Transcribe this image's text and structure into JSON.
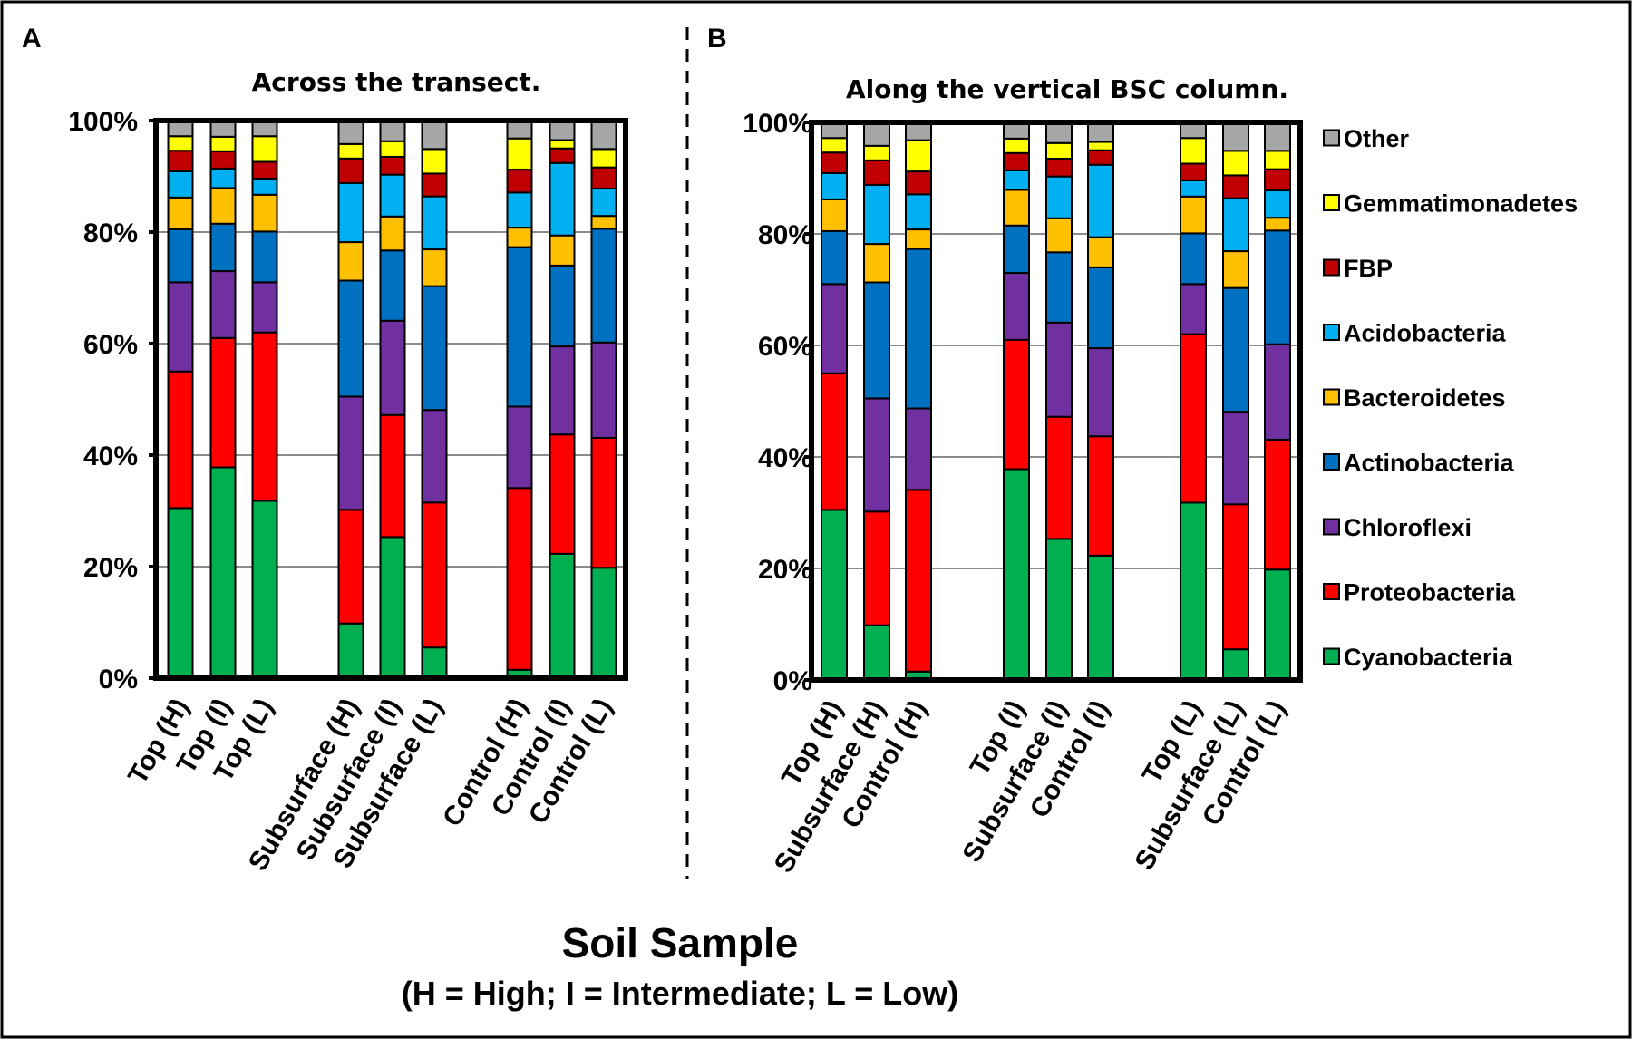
{
  "figure": {
    "xlabel": "Soil Sample",
    "xlabel_sub": "(H = High; I = Intermediate; L = Low)"
  },
  "legend": {
    "items": [
      "Other",
      "Gemmatimonadetes",
      "FBP",
      "Acidobacteria",
      "Bacteroidetes",
      "Actinobacteria",
      "Chloroflexi",
      "Proteobacteria",
      "Cyanobacteria"
    ]
  },
  "chart_data": [
    {
      "type": "bar",
      "stacked": true,
      "panel": "A",
      "title": "Across the transect.",
      "ylabel": "",
      "ylim": [
        0,
        100
      ],
      "yticks": [
        "0%",
        "20%",
        "40%",
        "60%",
        "80%",
        "100%"
      ],
      "grid": true,
      "groups": [
        3,
        3,
        3
      ],
      "categories": [
        "Top (H)",
        "Top (I)",
        "Top (L)",
        "Subsurface (H)",
        "Subsurface (I)",
        "Subsurface (L)",
        "Control (H)",
        "Control (I)",
        "Control (L)"
      ],
      "series": [
        {
          "name": "Cyanobacteria",
          "color": "#00b050",
          "values": [
            30.5,
            37.8,
            31.8,
            9.8,
            25.3,
            5.5,
            1.5,
            22.3,
            19.8
          ]
        },
        {
          "name": "Proteobacteria",
          "color": "#ff0000",
          "values": [
            24.5,
            23.2,
            30.2,
            20.4,
            21.9,
            26.0,
            32.6,
            21.4,
            23.3
          ]
        },
        {
          "name": "Chloroflexi",
          "color": "#7030a0",
          "values": [
            16.0,
            12.0,
            9.0,
            20.3,
            16.9,
            16.6,
            14.6,
            15.8,
            17.1
          ]
        },
        {
          "name": "Actinobacteria",
          "color": "#0070c0",
          "values": [
            9.5,
            8.5,
            9.1,
            20.8,
            12.6,
            22.2,
            28.6,
            14.5,
            20.4
          ]
        },
        {
          "name": "Bacteroidetes",
          "color": "#ffc000",
          "values": [
            5.7,
            6.4,
            6.6,
            6.9,
            6.1,
            6.6,
            3.5,
            5.4,
            2.3
          ]
        },
        {
          "name": "Acidobacteria",
          "color": "#00b0f0",
          "values": [
            4.7,
            3.5,
            2.9,
            10.6,
            7.5,
            9.5,
            6.3,
            13.0,
            4.9
          ]
        },
        {
          "name": "FBP",
          "color": "#c00000",
          "values": [
            3.7,
            3.1,
            3.0,
            4.4,
            3.2,
            4.1,
            4.1,
            2.6,
            3.8
          ]
        },
        {
          "name": "Gemmatimonadetes",
          "color": "#ffff00",
          "values": [
            2.6,
            2.6,
            4.6,
            2.6,
            2.8,
            4.4,
            5.6,
            1.5,
            3.3
          ]
        },
        {
          "name": "Other",
          "color": "#a6a6a6",
          "values": [
            2.8,
            2.9,
            2.8,
            4.2,
            3.7,
            5.1,
            3.2,
            3.5,
            5.1
          ]
        }
      ]
    },
    {
      "type": "bar",
      "stacked": true,
      "panel": "B",
      "title": "Along the vertical BSC column.",
      "ylabel": "",
      "ylim": [
        0,
        100
      ],
      "yticks": [
        "0%",
        "20%",
        "40%",
        "60%",
        "80%",
        "100%"
      ],
      "grid": true,
      "groups": [
        3,
        3,
        3
      ],
      "categories": [
        "Top (H)",
        "Subsurface (H)",
        "Control (H)",
        "Top (I)",
        "Subsurface (I)",
        "Control (I)",
        "Top (L)",
        "Subsurface (L)",
        "Control (L)"
      ],
      "series": [
        {
          "name": "Cyanobacteria",
          "color": "#00b050",
          "values": [
            30.5,
            9.8,
            1.5,
            37.8,
            25.3,
            22.3,
            31.8,
            5.5,
            19.8
          ]
        },
        {
          "name": "Proteobacteria",
          "color": "#ff0000",
          "values": [
            24.5,
            20.4,
            32.6,
            23.2,
            21.9,
            21.4,
            30.2,
            26.0,
            23.3
          ]
        },
        {
          "name": "Chloroflexi",
          "color": "#7030a0",
          "values": [
            16.0,
            20.3,
            14.6,
            12.0,
            16.9,
            15.8,
            9.0,
            16.6,
            17.1
          ]
        },
        {
          "name": "Actinobacteria",
          "color": "#0070c0",
          "values": [
            9.5,
            20.8,
            28.6,
            8.5,
            12.6,
            14.5,
            9.1,
            22.2,
            20.4
          ]
        },
        {
          "name": "Bacteroidetes",
          "color": "#ffc000",
          "values": [
            5.7,
            6.9,
            3.5,
            6.4,
            6.1,
            5.4,
            6.6,
            6.6,
            2.3
          ]
        },
        {
          "name": "Acidobacteria",
          "color": "#00b0f0",
          "values": [
            4.7,
            10.6,
            6.3,
            3.5,
            7.5,
            13.0,
            2.9,
            9.5,
            4.9
          ]
        },
        {
          "name": "FBP",
          "color": "#c00000",
          "values": [
            3.7,
            4.4,
            4.1,
            3.1,
            3.2,
            2.6,
            3.0,
            4.1,
            3.8
          ]
        },
        {
          "name": "Gemmatimonadetes",
          "color": "#ffff00",
          "values": [
            2.6,
            2.6,
            5.6,
            2.6,
            2.8,
            1.5,
            4.6,
            4.4,
            3.3
          ]
        },
        {
          "name": "Other",
          "color": "#a6a6a6",
          "values": [
            2.8,
            4.2,
            3.2,
            2.9,
            3.7,
            3.5,
            2.8,
            5.1,
            5.1
          ]
        }
      ]
    }
  ]
}
